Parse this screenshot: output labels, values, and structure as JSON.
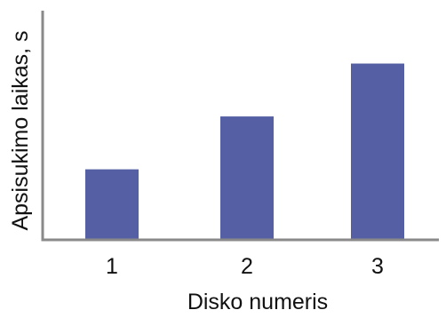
{
  "chart_data": {
    "type": "bar",
    "categories": [
      "1",
      "2",
      "3"
    ],
    "values": [
      80,
      140,
      200
    ],
    "xlabel": "Disko numeris",
    "ylabel": "Apsisukimo laikas, s",
    "ylim": [
      0,
      260
    ],
    "grid": false,
    "legend": "none",
    "y_ticks_shown": false,
    "bar_color": "#5560a4",
    "axis_color": "#8a8a8a"
  }
}
